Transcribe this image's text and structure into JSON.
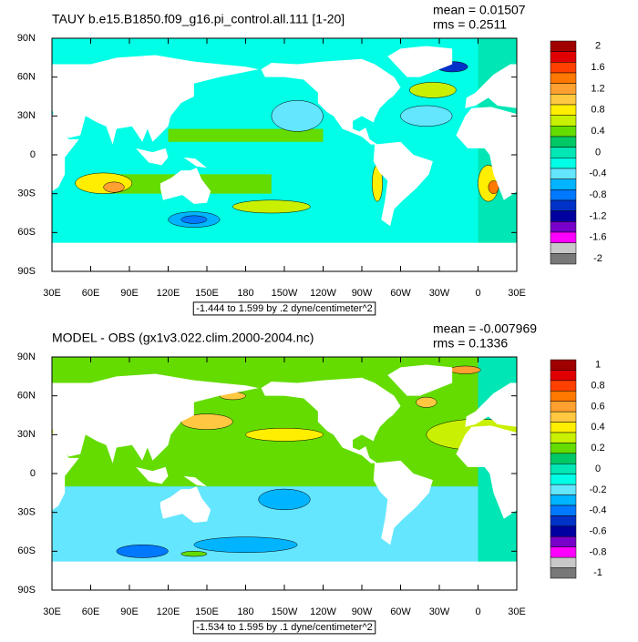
{
  "panels": [
    {
      "title": "TAUY b.e15.B1850.f09_g16.pi_control.all.111 [1-20]",
      "mean": "mean = 0.01507",
      "rms": "rms = 0.2511",
      "lat_labels": [
        "90N",
        "60N",
        "30N",
        "0",
        "30S",
        "60S",
        "90S"
      ],
      "lon_labels": [
        "30E",
        "60E",
        "90E",
        "120E",
        "150E",
        "180",
        "150W",
        "120W",
        "90W",
        "60W",
        "30W",
        "0",
        "30E"
      ],
      "colorbar": {
        "labels": [
          2,
          1.6,
          1.2,
          0.8,
          0.4,
          0,
          -0.4,
          -0.8,
          -1.2,
          -1.6,
          -2
        ],
        "colors": [
          "#a00000",
          "#e00000",
          "#ff4000",
          "#ff7800",
          "#ffa030",
          "#ffc840",
          "#ffee00",
          "#c8f000",
          "#64dc00",
          "#00c864",
          "#00e6b4",
          "#00ffe6",
          "#64e6ff",
          "#00b4ff",
          "#0078ff",
          "#0032c8",
          "#0000a0",
          "#7800c8",
          "#ff00ff",
          "#c8c8c8",
          "#787878"
        ]
      },
      "caption": "-1.444 to 1.599 by .2 dyne/centimeter^2"
    },
    {
      "title": "MODEL - OBS (gx1v3.022.clim.2000-2004.nc)",
      "mean": "mean = -0.007969",
      "rms": "rms = 0.1336",
      "lat_labels": [
        "90N",
        "60N",
        "30N",
        "0",
        "30S",
        "60S",
        "90S"
      ],
      "lon_labels": [
        "30E",
        "60E",
        "90E",
        "120E",
        "150E",
        "180",
        "150W",
        "120W",
        "90W",
        "60W",
        "30W",
        "0",
        "30E"
      ],
      "colorbar": {
        "labels": [
          1,
          0.8,
          0.6,
          0.4,
          0.2,
          0,
          -0.2,
          -0.4,
          -0.6,
          -0.8,
          -1
        ],
        "colors": [
          "#a00000",
          "#e00000",
          "#ff4000",
          "#ff7800",
          "#ffa030",
          "#ffc840",
          "#ffee00",
          "#c8f000",
          "#64dc00",
          "#00c864",
          "#00e6b4",
          "#00ffe6",
          "#64e6ff",
          "#00b4ff",
          "#0078ff",
          "#0032c8",
          "#0000a0",
          "#7800c8",
          "#ff00ff",
          "#c8c8c8",
          "#787878"
        ]
      },
      "caption": "-1.534 to 1.595 by .1 dyne/centimeter^2"
    }
  ]
}
